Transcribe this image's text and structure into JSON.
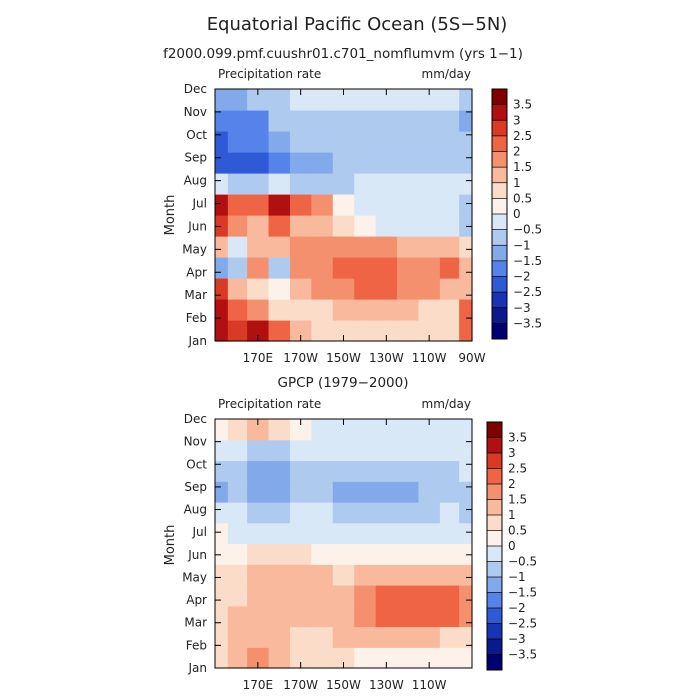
{
  "figure": {
    "title": "Equatorial Pacific Ocean (5S−5N)"
  },
  "chart_data": [
    {
      "type": "heatmap",
      "title": "f2000.099.pmf.cuushr01.c701_nomflumvm (yrs 1−1)",
      "left_label": "Precipitation rate",
      "right_label": "mm/day",
      "ylabel": "Month",
      "y_ticklabels": [
        "Jan",
        "Feb",
        "Mar",
        "Apr",
        "May",
        "Jun",
        "Jul",
        "Aug",
        "Sep",
        "Oct",
        "Nov",
        "Dec"
      ],
      "x_ticklabels": [
        "170E",
        "170W",
        "150W",
        "130W",
        "110W",
        "90W"
      ],
      "x_tick_lon": [
        170,
        190,
        210,
        230,
        250,
        270
      ],
      "xlim_lon": [
        150,
        270
      ],
      "columns_lon": [
        152,
        160,
        170,
        180,
        190,
        200,
        210,
        220,
        230,
        240,
        250,
        260,
        268
      ],
      "values": [
        [
          3.0,
          2.5,
          3.0,
          2.0,
          1.0,
          0.5,
          0.5,
          0.5,
          0.5,
          0.5,
          0.5,
          0.5,
          2.0
        ],
        [
          3.0,
          2.0,
          1.5,
          0.5,
          0.5,
          0.5,
          1.0,
          1.0,
          1.0,
          1.0,
          0.5,
          0.5,
          2.0
        ],
        [
          2.5,
          1.0,
          0.5,
          0.0,
          1.0,
          1.5,
          1.5,
          2.0,
          2.0,
          1.5,
          1.5,
          1.0,
          1.0
        ],
        [
          -1.5,
          -1.0,
          1.5,
          -1.0,
          1.5,
          1.5,
          2.0,
          2.0,
          2.0,
          1.5,
          1.5,
          2.0,
          1.0
        ],
        [
          1.0,
          -0.5,
          1.0,
          1.0,
          1.5,
          1.5,
          1.5,
          1.5,
          1.5,
          1.0,
          1.0,
          1.0,
          0.5
        ],
        [
          2.5,
          1.5,
          1.0,
          2.0,
          1.0,
          1.0,
          0.5,
          0.0,
          -0.5,
          -0.5,
          -0.5,
          -0.5,
          -1.0
        ],
        [
          3.0,
          2.0,
          2.0,
          3.0,
          2.0,
          1.5,
          0.0,
          -0.5,
          -0.5,
          -0.5,
          -0.5,
          -0.5,
          -1.0
        ],
        [
          -0.5,
          -1.0,
          -1.0,
          -0.5,
          -1.0,
          -1.0,
          -1.0,
          -0.5,
          -0.5,
          -0.5,
          -0.5,
          -0.5,
          -0.5
        ],
        [
          -2.5,
          -2.5,
          -2.5,
          -2.0,
          -1.5,
          -1.5,
          -1.0,
          -1.0,
          -1.0,
          -1.0,
          -1.0,
          -1.0,
          -1.0
        ],
        [
          -2.5,
          -2.0,
          -2.0,
          -1.5,
          -1.0,
          -1.0,
          -1.0,
          -1.0,
          -1.0,
          -1.0,
          -1.0,
          -1.0,
          -1.0
        ],
        [
          -2.0,
          -2.0,
          -2.0,
          -1.0,
          -1.0,
          -1.0,
          -1.0,
          -1.0,
          -1.0,
          -1.0,
          -1.0,
          -1.0,
          -1.5
        ],
        [
          -1.5,
          -1.5,
          -1.0,
          -1.0,
          -0.5,
          -0.5,
          -0.5,
          -0.5,
          -0.5,
          -0.5,
          -0.5,
          -0.5,
          -1.0
        ]
      ]
    },
    {
      "type": "heatmap",
      "title": "GPCP (1979−2000)",
      "left_label": "Precipitation rate",
      "right_label": "mm/day",
      "ylabel": "Month",
      "y_ticklabels": [
        "Jan",
        "Feb",
        "Mar",
        "Apr",
        "May",
        "Jun",
        "Jul",
        "Aug",
        "Sep",
        "Oct",
        "Nov",
        "Dec"
      ],
      "x_ticklabels": [
        "170E",
        "170W",
        "150W",
        "130W",
        "110W"
      ],
      "x_tick_lon": [
        170,
        190,
        210,
        230,
        250
      ],
      "xlim_lon": [
        150,
        270
      ],
      "columns_lon": [
        152,
        160,
        170,
        180,
        190,
        200,
        210,
        220,
        230,
        240,
        250,
        260,
        268
      ],
      "values": [
        [
          0.5,
          1.0,
          1.5,
          1.0,
          0.5,
          0.5,
          0.5,
          0.0,
          0.0,
          0.0,
          0.0,
          0.0,
          0.0
        ],
        [
          0.5,
          1.0,
          1.0,
          1.0,
          0.5,
          0.5,
          1.0,
          1.0,
          1.0,
          1.0,
          1.0,
          0.5,
          0.5
        ],
        [
          0.5,
          1.0,
          1.0,
          1.0,
          1.0,
          1.0,
          1.0,
          1.5,
          2.0,
          2.0,
          2.0,
          2.0,
          1.5
        ],
        [
          0.5,
          0.5,
          1.0,
          1.0,
          1.0,
          1.0,
          1.0,
          1.5,
          2.0,
          2.0,
          2.0,
          2.0,
          1.5
        ],
        [
          0.5,
          0.5,
          1.0,
          1.0,
          1.0,
          1.0,
          0.5,
          1.0,
          1.0,
          1.0,
          1.0,
          1.0,
          1.0
        ],
        [
          0.0,
          0.0,
          0.5,
          0.5,
          0.5,
          0.0,
          0.0,
          0.0,
          0.0,
          0.0,
          0.0,
          0.0,
          0.0
        ],
        [
          0.0,
          -0.5,
          -0.5,
          -0.5,
          -0.5,
          -0.5,
          -0.5,
          -0.5,
          -0.5,
          -0.5,
          -0.5,
          -0.5,
          -0.5
        ],
        [
          -0.5,
          -0.5,
          -1.0,
          -1.0,
          -0.5,
          -0.5,
          -1.0,
          -1.0,
          -1.0,
          -1.0,
          -1.0,
          -0.5,
          -1.0
        ],
        [
          -1.5,
          -1.0,
          -1.5,
          -1.5,
          -1.0,
          -1.0,
          -1.5,
          -1.5,
          -1.5,
          -1.5,
          -1.0,
          -1.0,
          -1.0
        ],
        [
          -1.0,
          -1.0,
          -1.5,
          -1.5,
          -1.0,
          -1.0,
          -1.0,
          -1.0,
          -1.0,
          -1.0,
          -1.0,
          -1.0,
          -0.5
        ],
        [
          -0.5,
          -0.5,
          -1.0,
          -1.0,
          -0.5,
          -0.5,
          -0.5,
          -0.5,
          -0.5,
          -0.5,
          -0.5,
          -0.5,
          -0.5
        ],
        [
          0.0,
          0.5,
          1.0,
          0.5,
          0.0,
          -0.5,
          -0.5,
          -0.5,
          -0.5,
          -0.5,
          -0.5,
          -0.5,
          -0.5
        ]
      ]
    }
  ],
  "colorbar": {
    "labels": [
      "3.5",
      "3",
      "2.5",
      "2",
      "1.5",
      "1",
      "0.5",
      "0",
      "−0.5",
      "−1",
      "−1.5",
      "−2",
      "−2.5",
      "−3",
      "−3.5"
    ],
    "thresholds": [
      3.5,
      3,
      2.5,
      2,
      1.5,
      1,
      0.5,
      0,
      -0.5,
      -1,
      -1.5,
      -2,
      -2.5,
      -3,
      -3.5
    ],
    "colors": [
      "#800000",
      "#b01010",
      "#d93a24",
      "#ee6445",
      "#f5906f",
      "#f8b99c",
      "#fbdcc8",
      "#fdf2ea",
      "#d8e8f7",
      "#aecbef",
      "#82a9ea",
      "#5683ea",
      "#2f5ad6",
      "#1a33b4",
      "#0a1a8c",
      "#000070"
    ]
  }
}
